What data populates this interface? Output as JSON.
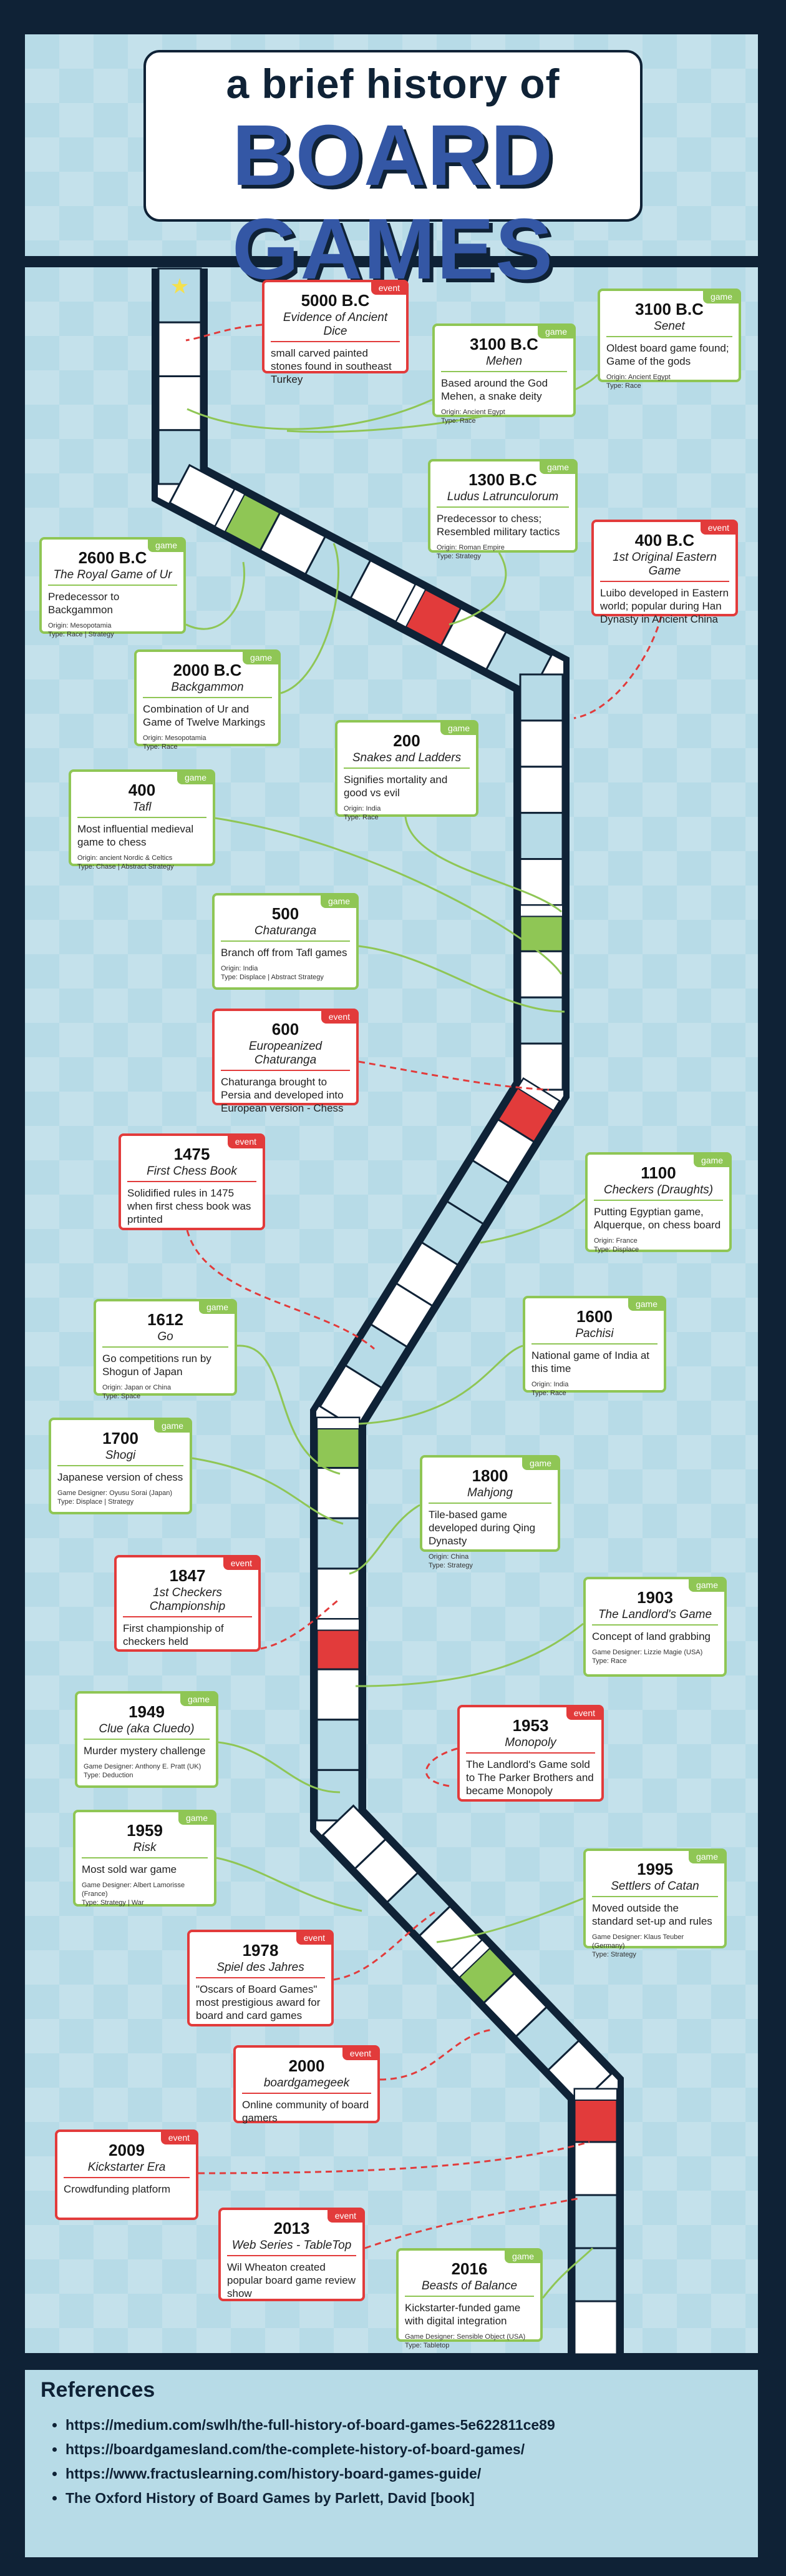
{
  "title": {
    "line1": "a brief history of",
    "line2": "BOARD GAMES"
  },
  "cards": [
    {
      "type": "event",
      "tag": "event",
      "year": "5000 B.C",
      "name": "Evidence of Ancient Dice",
      "desc": "small carved painted stones found in southeast Turkey",
      "meta": []
    },
    {
      "type": "game",
      "tag": "game",
      "year": "3100 B.C",
      "name": "Mehen",
      "desc": "Based around the God Mehen, a snake deity",
      "meta": [
        "Origin: Ancient Egypt",
        "Type: Race"
      ]
    },
    {
      "type": "game",
      "tag": "game",
      "year": "3100 B.C",
      "name": "Senet",
      "desc": "Oldest board game found; Game of the gods",
      "meta": [
        "Origin: Ancient Egypt",
        "Type: Race"
      ]
    },
    {
      "type": "game",
      "tag": "game",
      "year": "1300 B.C",
      "name": "Ludus Latrunculorum",
      "desc": "Predecessor to chess; Resembled military tactics",
      "meta": [
        "Origin: Roman Empire",
        "Type: Strategy"
      ]
    },
    {
      "type": "game",
      "tag": "game",
      "year": "2600 B.C",
      "name": "The Royal Game of Ur",
      "desc": "Predecessor to Backgammon",
      "meta": [
        "Origin: Mesopotamia",
        "Type: Race | Strategy"
      ]
    },
    {
      "type": "event",
      "tag": "event",
      "year": "400 B.C",
      "name": "1st Original Eastern Game",
      "desc": "Luibo developed in Eastern world; popular during Han Dynasty in Ancient China",
      "meta": []
    },
    {
      "type": "game",
      "tag": "game",
      "year": "2000 B.C",
      "name": "Backgammon",
      "desc": "Combination of Ur and Game of Twelve Markings",
      "meta": [
        "Origin: Mesopotamia",
        "Type: Race"
      ]
    },
    {
      "type": "game",
      "tag": "game",
      "year": "200",
      "name": "Snakes and Ladders",
      "desc": "Signifies mortality and good vs evil",
      "meta": [
        "Origin: India",
        "Type: Race"
      ]
    },
    {
      "type": "game",
      "tag": "game",
      "year": "400",
      "name": "Tafl",
      "desc": "Most influential medieval game to chess",
      "meta": [
        "Origin: ancient Nordic & Celtics",
        "Type: Chase | Abstract Strategy"
      ]
    },
    {
      "type": "game",
      "tag": "game",
      "year": "500",
      "name": "Chaturanga",
      "desc": "Branch off from Tafl games",
      "meta": [
        "Origin: India",
        "Type: Displace | Abstract Strategy"
      ]
    },
    {
      "type": "event",
      "tag": "event",
      "year": "600",
      "name": "Europeanized Chaturanga",
      "desc": "Chaturanga brought to Persia and developed into European version - Chess",
      "meta": []
    },
    {
      "type": "event",
      "tag": "event",
      "year": "1475",
      "name": "First Chess Book",
      "desc": "Solidified rules in 1475 when first chess book was prtinted",
      "meta": []
    },
    {
      "type": "game",
      "tag": "game",
      "year": "1100",
      "name": "Checkers (Draughts)",
      "desc": "Putting Egyptian game, Alquerque, on chess board",
      "meta": [
        "Origin: France",
        "Type: Displace"
      ]
    },
    {
      "type": "game",
      "tag": "game",
      "year": "1612",
      "name": "Go",
      "desc": "Go competitions run by Shogun of Japan",
      "meta": [
        "Origin: Japan or China",
        "Type: Space"
      ]
    },
    {
      "type": "game",
      "tag": "game",
      "year": "1600",
      "name": "Pachisi",
      "desc": "National game of India at this time",
      "meta": [
        "Origin: India",
        "Type: Race"
      ]
    },
    {
      "type": "game",
      "tag": "game",
      "year": "1700",
      "name": "Shogi",
      "desc": "Japanese version of chess",
      "meta": [
        "Game Designer: Oyusu Sorai (Japan)",
        "Type: Displace | Strategy"
      ]
    },
    {
      "type": "game",
      "tag": "game",
      "year": "1800",
      "name": "Mahjong",
      "desc": "Tile-based game developed during Qing Dynasty",
      "meta": [
        "Origin: China",
        "Type: Strategy"
      ]
    },
    {
      "type": "event",
      "tag": "event",
      "year": "1847",
      "name": "1st Checkers Championship",
      "desc": "First championship of checkers held",
      "meta": []
    },
    {
      "type": "game",
      "tag": "game",
      "year": "1903",
      "name": "The Landlord's Game",
      "desc": "Concept of land grabbing",
      "meta": [
        "Game Designer: Lizzie Magie (USA)",
        "Type: Race"
      ]
    },
    {
      "type": "game",
      "tag": "game",
      "year": "1949",
      "name": "Clue (aka Cluedo)",
      "desc": "Murder mystery challenge",
      "meta": [
        "Game Designer: Anthony E. Pratt (UK)",
        "Type: Deduction"
      ]
    },
    {
      "type": "event",
      "tag": "event",
      "year": "1953",
      "name": "Monopoly",
      "desc": "The Landlord's Game sold to The Parker Brothers and became Monopoly",
      "meta": []
    },
    {
      "type": "game",
      "tag": "game",
      "year": "1959",
      "name": "Risk",
      "desc": "Most sold war game",
      "meta": [
        "Game Designer: Albert Lamorisse (France)",
        "Type: Strategy | War"
      ]
    },
    {
      "type": "game",
      "tag": "game",
      "year": "1995",
      "name": "Settlers of Catan",
      "desc": "Moved outside the standard set-up and rules",
      "meta": [
        "Game Designer: Klaus Teuber (Germany)",
        "Type: Strategy"
      ]
    },
    {
      "type": "event",
      "tag": "event",
      "year": "1978",
      "name": "Spiel des Jahres",
      "desc": "\"Oscars of Board Games\" most prestigious award for board and card games",
      "meta": []
    },
    {
      "type": "event",
      "tag": "event",
      "year": "2000",
      "name": "boardgamegeek",
      "desc": "Online community of board gamers",
      "meta": []
    },
    {
      "type": "event",
      "tag": "event",
      "year": "2009",
      "name": "Kickstarter Era",
      "desc": "Crowdfunding platform",
      "meta": []
    },
    {
      "type": "event",
      "tag": "event",
      "year": "2013",
      "name": "Web Series - TableTop",
      "desc": "Wil Wheaton created popular board game review show",
      "meta": []
    },
    {
      "type": "game",
      "tag": "game",
      "year": "2016",
      "name": "Beasts of Balance",
      "desc": "Kickstarter-funded game with digital integration",
      "meta": [
        "Game Designer: Sensible Object (USA)",
        "Type: Tabletop"
      ]
    }
  ],
  "references": {
    "title": "References",
    "items": [
      "https://medium.com/swlh/the-full-history-of-board-games-5e622811ce89",
      "https://boardgamesland.com/the-complete-history-of-board-games/",
      "https://www.fractuslearning.com/history-board-games-guide/",
      "The Oxford History of Board Games by Parlett, David [book]"
    ]
  },
  "colors": {
    "navy": "#0f2236",
    "sky": "#b7dbe7",
    "green": "#8fc655",
    "red": "#e23b3b",
    "blue": "#3457a5"
  }
}
